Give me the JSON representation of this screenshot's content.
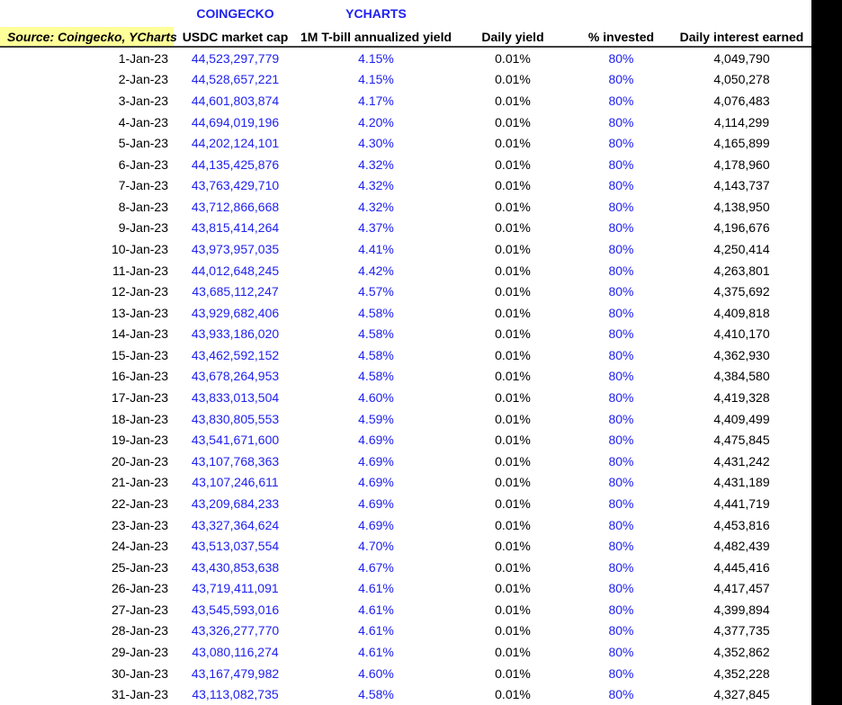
{
  "colors": {
    "blue_text": "#1f21f0",
    "yellow_highlight": "#ffff99",
    "border_dark": "#3d3d3d",
    "black_panel": "#000000"
  },
  "header": {
    "source_label": "Source: Coingecko, YCharts",
    "coingecko_label": "COINGECKO",
    "ycharts_label": "YCHARTS",
    "columns": [
      "USDC market cap",
      "1M T-bill annualized yield",
      "Daily yield",
      "% invested",
      "Daily interest earned"
    ]
  },
  "table": {
    "rows": [
      [
        "1-Jan-23",
        "44,523,297,779",
        "4.15%",
        "0.01%",
        "80%",
        "4,049,790"
      ],
      [
        "2-Jan-23",
        "44,528,657,221",
        "4.15%",
        "0.01%",
        "80%",
        "4,050,278"
      ],
      [
        "3-Jan-23",
        "44,601,803,874",
        "4.17%",
        "0.01%",
        "80%",
        "4,076,483"
      ],
      [
        "4-Jan-23",
        "44,694,019,196",
        "4.20%",
        "0.01%",
        "80%",
        "4,114,299"
      ],
      [
        "5-Jan-23",
        "44,202,124,101",
        "4.30%",
        "0.01%",
        "80%",
        "4,165,899"
      ],
      [
        "6-Jan-23",
        "44,135,425,876",
        "4.32%",
        "0.01%",
        "80%",
        "4,178,960"
      ],
      [
        "7-Jan-23",
        "43,763,429,710",
        "4.32%",
        "0.01%",
        "80%",
        "4,143,737"
      ],
      [
        "8-Jan-23",
        "43,712,866,668",
        "4.32%",
        "0.01%",
        "80%",
        "4,138,950"
      ],
      [
        "9-Jan-23",
        "43,815,414,264",
        "4.37%",
        "0.01%",
        "80%",
        "4,196,676"
      ],
      [
        "10-Jan-23",
        "43,973,957,035",
        "4.41%",
        "0.01%",
        "80%",
        "4,250,414"
      ],
      [
        "11-Jan-23",
        "44,012,648,245",
        "4.42%",
        "0.01%",
        "80%",
        "4,263,801"
      ],
      [
        "12-Jan-23",
        "43,685,112,247",
        "4.57%",
        "0.01%",
        "80%",
        "4,375,692"
      ],
      [
        "13-Jan-23",
        "43,929,682,406",
        "4.58%",
        "0.01%",
        "80%",
        "4,409,818"
      ],
      [
        "14-Jan-23",
        "43,933,186,020",
        "4.58%",
        "0.01%",
        "80%",
        "4,410,170"
      ],
      [
        "15-Jan-23",
        "43,462,592,152",
        "4.58%",
        "0.01%",
        "80%",
        "4,362,930"
      ],
      [
        "16-Jan-23",
        "43,678,264,953",
        "4.58%",
        "0.01%",
        "80%",
        "4,384,580"
      ],
      [
        "17-Jan-23",
        "43,833,013,504",
        "4.60%",
        "0.01%",
        "80%",
        "4,419,328"
      ],
      [
        "18-Jan-23",
        "43,830,805,553",
        "4.59%",
        "0.01%",
        "80%",
        "4,409,499"
      ],
      [
        "19-Jan-23",
        "43,541,671,600",
        "4.69%",
        "0.01%",
        "80%",
        "4,475,845"
      ],
      [
        "20-Jan-23",
        "43,107,768,363",
        "4.69%",
        "0.01%",
        "80%",
        "4,431,242"
      ],
      [
        "21-Jan-23",
        "43,107,246,611",
        "4.69%",
        "0.01%",
        "80%",
        "4,431,189"
      ],
      [
        "22-Jan-23",
        "43,209,684,233",
        "4.69%",
        "0.01%",
        "80%",
        "4,441,719"
      ],
      [
        "23-Jan-23",
        "43,327,364,624",
        "4.69%",
        "0.01%",
        "80%",
        "4,453,816"
      ],
      [
        "24-Jan-23",
        "43,513,037,554",
        "4.70%",
        "0.01%",
        "80%",
        "4,482,439"
      ],
      [
        "25-Jan-23",
        "43,430,853,638",
        "4.67%",
        "0.01%",
        "80%",
        "4,445,416"
      ],
      [
        "26-Jan-23",
        "43,719,411,091",
        "4.61%",
        "0.01%",
        "80%",
        "4,417,457"
      ],
      [
        "27-Jan-23",
        "43,545,593,016",
        "4.61%",
        "0.01%",
        "80%",
        "4,399,894"
      ],
      [
        "28-Jan-23",
        "43,326,277,770",
        "4.61%",
        "0.01%",
        "80%",
        "4,377,735"
      ],
      [
        "29-Jan-23",
        "43,080,116,274",
        "4.61%",
        "0.01%",
        "80%",
        "4,352,862"
      ],
      [
        "30-Jan-23",
        "43,167,479,982",
        "4.60%",
        "0.01%",
        "80%",
        "4,352,228"
      ],
      [
        "31-Jan-23",
        "43,113,082,735",
        "4.58%",
        "0.01%",
        "80%",
        "4,327,845"
      ]
    ]
  }
}
